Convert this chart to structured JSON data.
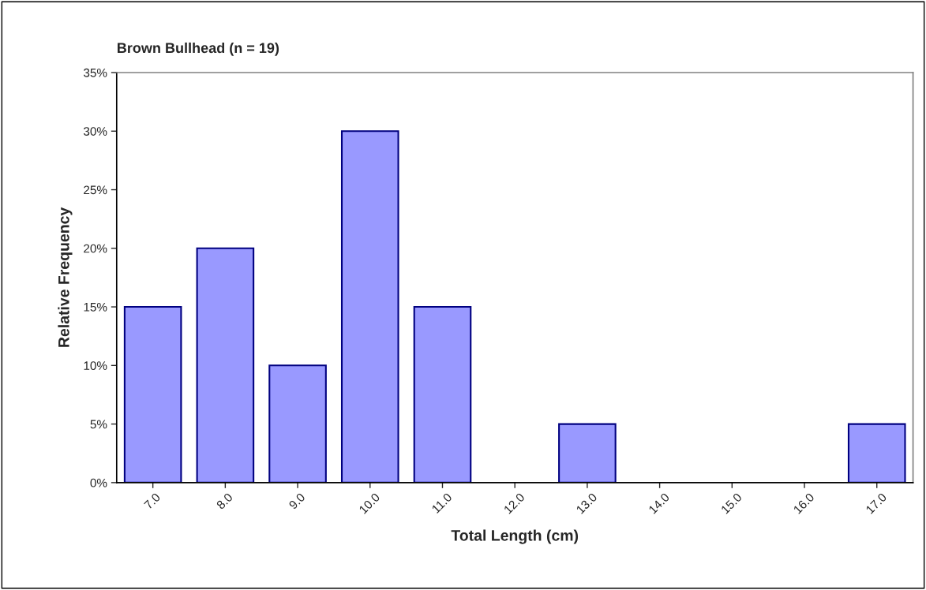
{
  "chart_data": {
    "type": "bar",
    "title": "Brown Bullhead (n = 19)",
    "xlabel": "Total Length (cm)",
    "ylabel": "Relative Frequency",
    "categories": [
      "7.0",
      "8.0",
      "9.0",
      "10.0",
      "11.0",
      "12.0",
      "13.0",
      "14.0",
      "15.0",
      "16.0",
      "17.0"
    ],
    "values": [
      15,
      20,
      10,
      30,
      15,
      0,
      5,
      0,
      0,
      0,
      5
    ],
    "color": "#9999ff",
    "ylim": [
      0,
      35
    ],
    "yticks": [
      {
        "value": 0,
        "label": "0%"
      },
      {
        "value": 5,
        "label": "5%"
      },
      {
        "value": 10,
        "label": "10%"
      },
      {
        "value": 15,
        "label": "15%"
      },
      {
        "value": 20,
        "label": "20%"
      },
      {
        "value": 25,
        "label": "25%"
      },
      {
        "value": 30,
        "label": "30%"
      },
      {
        "value": 35,
        "label": "35%"
      }
    ],
    "grid": false,
    "legend": false
  }
}
